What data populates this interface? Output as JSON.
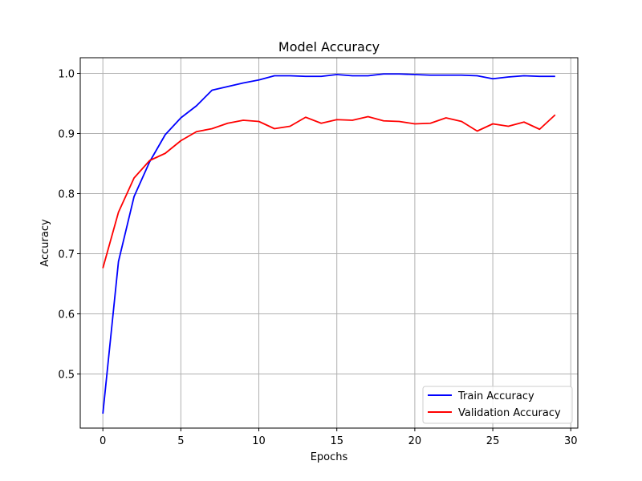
{
  "chart_data": {
    "type": "line",
    "title": "Model Accuracy",
    "xlabel": "Epochs",
    "ylabel": "Accuracy",
    "xlim": [
      -1.45,
      30.45
    ],
    "ylim": [
      0.41,
      1.026
    ],
    "xticks": [
      0,
      5,
      10,
      15,
      20,
      25,
      30
    ],
    "yticks": [
      0.5,
      0.6,
      0.7,
      0.8,
      0.9,
      1.0
    ],
    "xtick_labels": [
      "0",
      "5",
      "10",
      "15",
      "20",
      "25",
      "30"
    ],
    "ytick_labels": [
      "0.5",
      "0.6",
      "0.7",
      "0.8",
      "0.9",
      "1.0"
    ],
    "grid": true,
    "legend_position": "lower-right",
    "x": [
      0,
      1,
      2,
      3,
      4,
      5,
      6,
      7,
      8,
      9,
      10,
      11,
      12,
      13,
      14,
      15,
      16,
      17,
      18,
      19,
      20,
      21,
      22,
      23,
      24,
      25,
      26,
      27,
      28,
      29
    ],
    "series": [
      {
        "name": "Train Accuracy",
        "color": "#0000ff",
        "values": [
          0.434,
          0.687,
          0.795,
          0.853,
          0.898,
          0.926,
          0.946,
          0.972,
          0.978,
          0.984,
          0.989,
          0.996,
          0.996,
          0.995,
          0.995,
          0.998,
          0.996,
          0.996,
          0.999,
          0.999,
          0.998,
          0.997,
          0.997,
          0.997,
          0.996,
          0.991,
          0.994,
          0.996,
          0.995,
          0.995
        ]
      },
      {
        "name": "Validation Accuracy",
        "color": "#ff0000",
        "values": [
          0.676,
          0.769,
          0.826,
          0.855,
          0.867,
          0.888,
          0.903,
          0.908,
          0.917,
          0.922,
          0.92,
          0.908,
          0.912,
          0.927,
          0.917,
          0.923,
          0.922,
          0.928,
          0.921,
          0.92,
          0.916,
          0.917,
          0.926,
          0.92,
          0.904,
          0.916,
          0.912,
          0.919,
          0.907,
          0.931
        ]
      }
    ]
  }
}
